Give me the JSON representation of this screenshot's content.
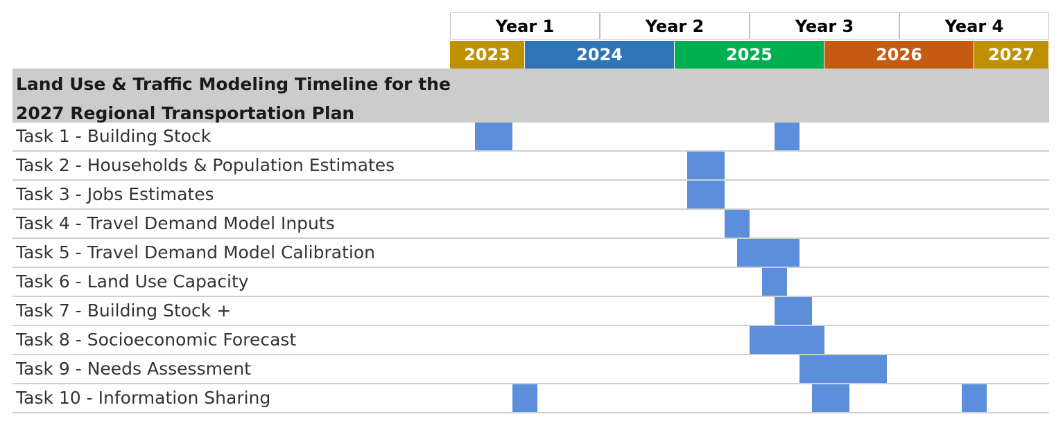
{
  "chart_data": {
    "type": "gantt",
    "title_lines": [
      "Land Use & Traffic Modeling Timeline for the",
      "2027 Regional Transportation Plan"
    ],
    "project_years": [
      "Year 1",
      "Year 2",
      "Year 3",
      "Year 4"
    ],
    "calendar_years": [
      {
        "label": "2023",
        "color": "#bf9000"
      },
      {
        "label": "2024",
        "color": "#2e75b6"
      },
      {
        "label": "2025",
        "color": "#00b050"
      },
      {
        "label": "2026",
        "color": "#c55a11"
      },
      {
        "label": "2027",
        "color": "#bf9000"
      }
    ],
    "bar_color": "#5b8fdb",
    "time_unit": "month of project (month 1 = first month of Year 1)",
    "tasks": [
      {
        "name": "Task 1 - Building Stock",
        "periods": [
          [
            3,
            5
          ],
          [
            27,
            28
          ]
        ]
      },
      {
        "name": "Task 2 - Households & Population Estimates",
        "periods": [
          [
            20,
            22
          ]
        ]
      },
      {
        "name": "Task 3 - Jobs Estimates",
        "periods": [
          [
            20,
            22
          ]
        ]
      },
      {
        "name": "Task 4 - Travel Demand Model Inputs",
        "periods": [
          [
            23,
            24
          ]
        ]
      },
      {
        "name": "Task 5 - Travel Demand Model Calibration",
        "periods": [
          [
            24,
            28
          ]
        ]
      },
      {
        "name": "Task 6 - Land Use Capacity",
        "periods": [
          [
            26,
            27
          ]
        ]
      },
      {
        "name": "Task 7 - Building Stock +",
        "periods": [
          [
            27,
            29
          ]
        ]
      },
      {
        "name": "Task 8 - Socioeconomic Forecast",
        "periods": [
          [
            25,
            30
          ]
        ]
      },
      {
        "name": "Task 9 - Needs Assessment",
        "periods": [
          [
            29,
            35
          ]
        ]
      },
      {
        "name": "Task 10 - Information Sharing",
        "periods": [
          [
            6,
            7
          ],
          [
            30,
            32
          ],
          [
            42,
            43
          ]
        ]
      }
    ]
  }
}
